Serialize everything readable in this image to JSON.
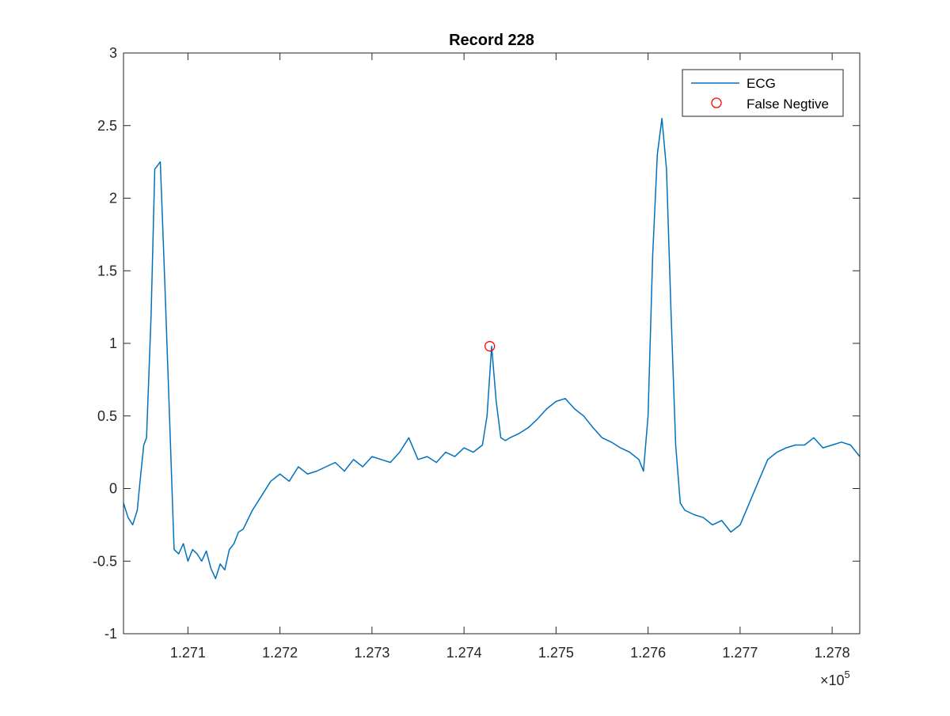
{
  "chart_data": {
    "type": "line",
    "title": "Record 228",
    "xlabel": "",
    "ylabel": "",
    "x_exponent_label": "×10",
    "x_exponent_power": "5",
    "xlim": [
      1.2703,
      1.2783
    ],
    "ylim": [
      -1,
      3
    ],
    "x_ticks": [
      1.271,
      1.272,
      1.273,
      1.274,
      1.275,
      1.276,
      1.277,
      1.278
    ],
    "x_tick_labels": [
      "1.271",
      "1.272",
      "1.273",
      "1.274",
      "1.275",
      "1.276",
      "1.277",
      "1.278"
    ],
    "y_ticks": [
      -1,
      -0.5,
      0,
      0.5,
      1,
      1.5,
      2,
      2.5,
      3
    ],
    "y_tick_labels": [
      "-1",
      "-0.5",
      "0",
      "0.5",
      "1",
      "1.5",
      "2",
      "2.5",
      "3"
    ],
    "grid": false,
    "legend_position": "top-right",
    "series": [
      {
        "name": "ECG",
        "color": "#0072BD",
        "style": "line",
        "x": [
          1.2703,
          1.27035,
          1.2704,
          1.27045,
          1.27048,
          1.27052,
          1.27055,
          1.2706,
          1.27064,
          1.2707,
          1.27075,
          1.2708,
          1.27085,
          1.2709,
          1.27095,
          1.271,
          1.27105,
          1.2711,
          1.27115,
          1.2712,
          1.27125,
          1.2713,
          1.27135,
          1.2714,
          1.27145,
          1.2715,
          1.27155,
          1.2716,
          1.2717,
          1.2718,
          1.2719,
          1.272,
          1.2721,
          1.2722,
          1.2723,
          1.2724,
          1.2725,
          1.2726,
          1.2727,
          1.2728,
          1.2729,
          1.273,
          1.2731,
          1.2732,
          1.2733,
          1.2734,
          1.2735,
          1.2736,
          1.2737,
          1.2738,
          1.2739,
          1.274,
          1.2741,
          1.2742,
          1.27425,
          1.2743,
          1.27435,
          1.2744,
          1.27445,
          1.2745,
          1.2746,
          1.2747,
          1.2748,
          1.2749,
          1.275,
          1.2751,
          1.2752,
          1.2753,
          1.2754,
          1.2755,
          1.2756,
          1.2757,
          1.2758,
          1.2759,
          1.27595,
          1.276,
          1.27605,
          1.2761,
          1.27615,
          1.2762,
          1.27625,
          1.2763,
          1.27635,
          1.2764,
          1.2765,
          1.2766,
          1.2767,
          1.2768,
          1.2769,
          1.277,
          1.2771,
          1.2772,
          1.2773,
          1.2774,
          1.2775,
          1.2776,
          1.2777,
          1.2778,
          1.2779,
          1.278,
          1.2781,
          1.2782,
          1.2783
        ],
        "y": [
          -0.1,
          -0.2,
          -0.25,
          -0.15,
          0.05,
          0.3,
          0.35,
          1.2,
          2.2,
          2.25,
          1.4,
          0.5,
          -0.42,
          -0.45,
          -0.38,
          -0.5,
          -0.42,
          -0.45,
          -0.5,
          -0.43,
          -0.55,
          -0.62,
          -0.52,
          -0.56,
          -0.42,
          -0.38,
          -0.3,
          -0.28,
          -0.15,
          -0.05,
          0.05,
          0.1,
          0.05,
          0.15,
          0.1,
          0.12,
          0.15,
          0.18,
          0.12,
          0.2,
          0.15,
          0.22,
          0.2,
          0.18,
          0.25,
          0.35,
          0.2,
          0.22,
          0.18,
          0.25,
          0.22,
          0.28,
          0.25,
          0.3,
          0.5,
          0.98,
          0.6,
          0.35,
          0.33,
          0.35,
          0.38,
          0.42,
          0.48,
          0.55,
          0.6,
          0.62,
          0.55,
          0.5,
          0.42,
          0.35,
          0.32,
          0.28,
          0.25,
          0.2,
          0.12,
          0.5,
          1.6,
          2.3,
          2.55,
          2.2,
          1.2,
          0.3,
          -0.1,
          -0.15,
          -0.18,
          -0.2,
          -0.25,
          -0.22,
          -0.3,
          -0.25,
          -0.1,
          0.05,
          0.2,
          0.25,
          0.28,
          0.3,
          0.3,
          0.35,
          0.28,
          0.3,
          0.32,
          0.3,
          0.22
        ]
      },
      {
        "name": "False Negtive",
        "color": "#FF0000",
        "style": "marker-circle",
        "x": [
          1.27428
        ],
        "y": [
          0.98
        ]
      }
    ]
  }
}
